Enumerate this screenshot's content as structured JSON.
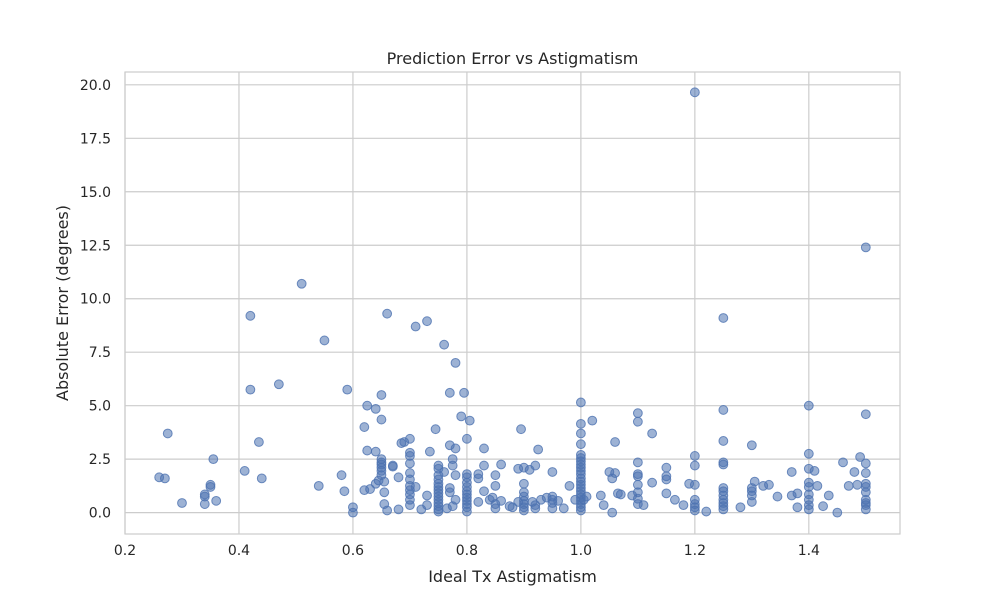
{
  "chart_data": {
    "type": "scatter",
    "title": "Prediction Error vs Astigmatism",
    "xlabel": "Ideal Tx Astigmatism",
    "ylabel": "Absolute Error (degrees)",
    "xlim": [
      0.2,
      1.56
    ],
    "ylim": [
      -1.0,
      20.6
    ],
    "grid": true,
    "point_color": "#4c72b0",
    "xticks": [
      0.2,
      0.4,
      0.6,
      0.8,
      1.0,
      1.2,
      1.4
    ],
    "xtick_labels": [
      "0.2",
      "0.4",
      "0.6",
      "0.8",
      "1.0",
      "1.2",
      "1.4"
    ],
    "yticks": [
      0.0,
      2.5,
      5.0,
      7.5,
      10.0,
      12.5,
      15.0,
      17.5,
      20.0
    ],
    "ytick_labels": [
      "0.0",
      "2.5",
      "5.0",
      "7.5",
      "10.0",
      "12.5",
      "15.0",
      "17.5",
      "20.0"
    ],
    "points": [
      [
        0.26,
        1.65
      ],
      [
        0.27,
        1.6
      ],
      [
        0.275,
        3.7
      ],
      [
        0.3,
        0.45
      ],
      [
        0.34,
        0.85
      ],
      [
        0.34,
        0.75
      ],
      [
        0.34,
        0.4
      ],
      [
        0.35,
        1.3
      ],
      [
        0.35,
        1.2
      ],
      [
        0.355,
        2.5
      ],
      [
        0.36,
        0.55
      ],
      [
        0.41,
        1.95
      ],
      [
        0.42,
        9.2
      ],
      [
        0.42,
        5.75
      ],
      [
        0.435,
        3.3
      ],
      [
        0.44,
        1.6
      ],
      [
        0.47,
        6.0
      ],
      [
        0.51,
        10.7
      ],
      [
        0.54,
        1.25
      ],
      [
        0.55,
        8.05
      ],
      [
        0.58,
        1.75
      ],
      [
        0.585,
        1.0
      ],
      [
        0.59,
        5.75
      ],
      [
        0.6,
        0.25
      ],
      [
        0.6,
        0.0
      ],
      [
        0.62,
        4.0
      ],
      [
        0.62,
        1.05
      ],
      [
        0.625,
        2.9
      ],
      [
        0.625,
        5.0
      ],
      [
        0.63,
        1.1
      ],
      [
        0.64,
        4.85
      ],
      [
        0.64,
        2.85
      ],
      [
        0.64,
        1.35
      ],
      [
        0.645,
        1.5
      ],
      [
        0.65,
        5.5
      ],
      [
        0.65,
        4.35
      ],
      [
        0.65,
        2.5
      ],
      [
        0.65,
        2.35
      ],
      [
        0.65,
        2.25
      ],
      [
        0.65,
        2.1
      ],
      [
        0.65,
        1.95
      ],
      [
        0.65,
        1.75
      ],
      [
        0.655,
        1.45
      ],
      [
        0.655,
        0.95
      ],
      [
        0.655,
        0.4
      ],
      [
        0.66,
        9.3
      ],
      [
        0.66,
        0.1
      ],
      [
        0.67,
        2.2
      ],
      [
        0.67,
        2.15
      ],
      [
        0.68,
        1.65
      ],
      [
        0.68,
        0.15
      ],
      [
        0.685,
        3.25
      ],
      [
        0.69,
        3.3
      ],
      [
        0.7,
        3.45
      ],
      [
        0.7,
        2.8
      ],
      [
        0.7,
        2.65
      ],
      [
        0.7,
        2.3
      ],
      [
        0.7,
        1.85
      ],
      [
        0.7,
        1.55
      ],
      [
        0.7,
        1.25
      ],
      [
        0.7,
        1.05
      ],
      [
        0.7,
        0.85
      ],
      [
        0.7,
        0.6
      ],
      [
        0.7,
        0.35
      ],
      [
        0.71,
        8.7
      ],
      [
        0.71,
        1.2
      ],
      [
        0.72,
        0.15
      ],
      [
        0.73,
        8.95
      ],
      [
        0.73,
        0.8
      ],
      [
        0.73,
        0.35
      ],
      [
        0.735,
        2.85
      ],
      [
        0.745,
        3.9
      ],
      [
        0.75,
        2.2
      ],
      [
        0.75,
        2.05
      ],
      [
        0.75,
        1.75
      ],
      [
        0.75,
        1.55
      ],
      [
        0.75,
        1.35
      ],
      [
        0.75,
        1.2
      ],
      [
        0.75,
        1.05
      ],
      [
        0.75,
        0.9
      ],
      [
        0.75,
        0.75
      ],
      [
        0.75,
        0.6
      ],
      [
        0.75,
        0.45
      ],
      [
        0.75,
        0.3
      ],
      [
        0.75,
        0.15
      ],
      [
        0.75,
        0.05
      ],
      [
        0.76,
        7.85
      ],
      [
        0.76,
        1.9
      ],
      [
        0.765,
        0.2
      ],
      [
        0.77,
        5.6
      ],
      [
        0.77,
        3.15
      ],
      [
        0.77,
        1.15
      ],
      [
        0.77,
        0.95
      ],
      [
        0.775,
        2.5
      ],
      [
        0.775,
        2.2
      ],
      [
        0.775,
        0.3
      ],
      [
        0.78,
        7.0
      ],
      [
        0.78,
        3.0
      ],
      [
        0.78,
        1.75
      ],
      [
        0.78,
        0.6
      ],
      [
        0.79,
        4.5
      ],
      [
        0.795,
        5.6
      ],
      [
        0.8,
        3.45
      ],
      [
        0.8,
        1.8
      ],
      [
        0.8,
        1.65
      ],
      [
        0.8,
        1.4
      ],
      [
        0.8,
        1.2
      ],
      [
        0.8,
        1.0
      ],
      [
        0.8,
        0.85
      ],
      [
        0.8,
        0.7
      ],
      [
        0.8,
        0.55
      ],
      [
        0.8,
        0.4
      ],
      [
        0.8,
        0.25
      ],
      [
        0.8,
        0.05
      ],
      [
        0.805,
        4.3
      ],
      [
        0.82,
        1.8
      ],
      [
        0.82,
        1.6
      ],
      [
        0.82,
        0.5
      ],
      [
        0.83,
        3.0
      ],
      [
        0.83,
        2.2
      ],
      [
        0.83,
        1.0
      ],
      [
        0.84,
        0.6
      ],
      [
        0.845,
        0.7
      ],
      [
        0.85,
        1.75
      ],
      [
        0.85,
        1.25
      ],
      [
        0.85,
        0.4
      ],
      [
        0.85,
        0.2
      ],
      [
        0.86,
        2.25
      ],
      [
        0.86,
        0.55
      ],
      [
        0.875,
        0.3
      ],
      [
        0.88,
        0.25
      ],
      [
        0.89,
        0.5
      ],
      [
        0.89,
        2.05
      ],
      [
        0.895,
        3.9
      ],
      [
        0.9,
        2.1
      ],
      [
        0.9,
        1.35
      ],
      [
        0.9,
        0.95
      ],
      [
        0.9,
        0.75
      ],
      [
        0.9,
        0.55
      ],
      [
        0.9,
        0.4
      ],
      [
        0.9,
        0.25
      ],
      [
        0.9,
        0.1
      ],
      [
        0.91,
        2.0
      ],
      [
        0.915,
        0.5
      ],
      [
        0.92,
        2.2
      ],
      [
        0.92,
        0.35
      ],
      [
        0.92,
        0.2
      ],
      [
        0.925,
        2.95
      ],
      [
        0.93,
        0.6
      ],
      [
        0.94,
        0.7
      ],
      [
        0.95,
        1.9
      ],
      [
        0.95,
        0.75
      ],
      [
        0.95,
        0.6
      ],
      [
        0.95,
        0.45
      ],
      [
        0.95,
        0.2
      ],
      [
        0.96,
        0.55
      ],
      [
        0.97,
        0.2
      ],
      [
        0.98,
        1.25
      ],
      [
        0.99,
        0.6
      ],
      [
        1.0,
        5.15
      ],
      [
        1.0,
        4.15
      ],
      [
        1.0,
        3.7
      ],
      [
        1.0,
        3.2
      ],
      [
        1.0,
        2.7
      ],
      [
        1.0,
        2.55
      ],
      [
        1.0,
        2.4
      ],
      [
        1.0,
        2.25
      ],
      [
        1.0,
        2.1
      ],
      [
        1.0,
        1.95
      ],
      [
        1.0,
        1.8
      ],
      [
        1.0,
        1.6
      ],
      [
        1.0,
        1.45
      ],
      [
        1.0,
        1.3
      ],
      [
        1.0,
        1.15
      ],
      [
        1.0,
        1.0
      ],
      [
        1.0,
        0.85
      ],
      [
        1.0,
        0.7
      ],
      [
        1.0,
        0.55
      ],
      [
        1.0,
        0.4
      ],
      [
        1.0,
        0.25
      ],
      [
        1.0,
        0.1
      ],
      [
        1.005,
        0.6
      ],
      [
        1.01,
        0.75
      ],
      [
        1.02,
        4.3
      ],
      [
        1.035,
        0.8
      ],
      [
        1.04,
        0.35
      ],
      [
        1.05,
        1.9
      ],
      [
        1.055,
        1.6
      ],
      [
        1.055,
        0.0
      ],
      [
        1.06,
        3.3
      ],
      [
        1.06,
        1.85
      ],
      [
        1.065,
        0.9
      ],
      [
        1.07,
        0.85
      ],
      [
        1.09,
        0.8
      ],
      [
        1.1,
        4.65
      ],
      [
        1.1,
        4.25
      ],
      [
        1.1,
        2.35
      ],
      [
        1.1,
        1.8
      ],
      [
        1.1,
        1.7
      ],
      [
        1.1,
        1.3
      ],
      [
        1.1,
        0.95
      ],
      [
        1.1,
        0.65
      ],
      [
        1.1,
        0.4
      ],
      [
        1.11,
        0.35
      ],
      [
        1.125,
        3.7
      ],
      [
        1.125,
        1.4
      ],
      [
        1.15,
        2.1
      ],
      [
        1.15,
        1.7
      ],
      [
        1.15,
        1.55
      ],
      [
        1.15,
        0.9
      ],
      [
        1.165,
        0.6
      ],
      [
        1.18,
        0.35
      ],
      [
        1.19,
        1.35
      ],
      [
        1.2,
        19.65
      ],
      [
        1.2,
        2.65
      ],
      [
        1.2,
        2.2
      ],
      [
        1.2,
        1.3
      ],
      [
        1.2,
        0.6
      ],
      [
        1.2,
        0.4
      ],
      [
        1.2,
        0.25
      ],
      [
        1.2,
        0.1
      ],
      [
        1.22,
        0.05
      ],
      [
        1.25,
        9.1
      ],
      [
        1.25,
        4.8
      ],
      [
        1.25,
        3.35
      ],
      [
        1.25,
        2.35
      ],
      [
        1.25,
        2.25
      ],
      [
        1.25,
        1.15
      ],
      [
        1.25,
        1.0
      ],
      [
        1.25,
        0.8
      ],
      [
        1.25,
        0.6
      ],
      [
        1.25,
        0.45
      ],
      [
        1.25,
        0.3
      ],
      [
        1.25,
        0.15
      ],
      [
        1.28,
        0.25
      ],
      [
        1.3,
        3.15
      ],
      [
        1.3,
        1.15
      ],
      [
        1.3,
        1.0
      ],
      [
        1.3,
        0.8
      ],
      [
        1.3,
        0.5
      ],
      [
        1.305,
        1.45
      ],
      [
        1.32,
        1.25
      ],
      [
        1.33,
        1.3
      ],
      [
        1.345,
        0.75
      ],
      [
        1.37,
        1.9
      ],
      [
        1.37,
        0.8
      ],
      [
        1.38,
        0.25
      ],
      [
        1.38,
        0.9
      ],
      [
        1.4,
        5.0
      ],
      [
        1.4,
        2.75
      ],
      [
        1.4,
        2.05
      ],
      [
        1.4,
        1.4
      ],
      [
        1.4,
        1.2
      ],
      [
        1.4,
        0.85
      ],
      [
        1.4,
        0.6
      ],
      [
        1.4,
        0.35
      ],
      [
        1.4,
        0.15
      ],
      [
        1.41,
        1.95
      ],
      [
        1.415,
        1.25
      ],
      [
        1.425,
        0.3
      ],
      [
        1.435,
        0.8
      ],
      [
        1.45,
        0.0
      ],
      [
        1.46,
        2.35
      ],
      [
        1.47,
        1.25
      ],
      [
        1.48,
        1.9
      ],
      [
        1.485,
        1.3
      ],
      [
        1.49,
        2.6
      ],
      [
        1.5,
        12.4
      ],
      [
        1.5,
        4.6
      ],
      [
        1.5,
        2.3
      ],
      [
        1.5,
        1.85
      ],
      [
        1.5,
        1.35
      ],
      [
        1.5,
        1.2
      ],
      [
        1.5,
        0.95
      ],
      [
        1.5,
        0.6
      ],
      [
        1.5,
        0.45
      ],
      [
        1.5,
        0.35
      ],
      [
        1.5,
        0.15
      ]
    ]
  }
}
